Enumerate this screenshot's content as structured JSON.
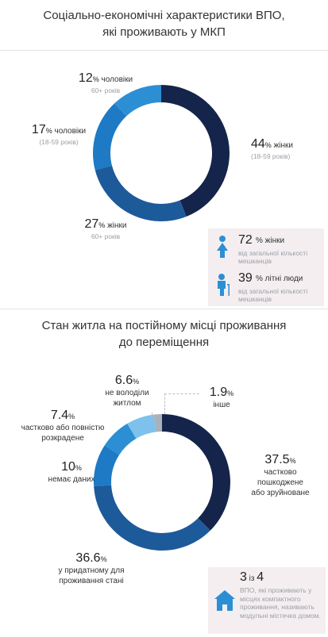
{
  "section1": {
    "title_line1": "Соціально-економічні характеристики ВПО,",
    "title_line2": "які проживають у МКП",
    "labels": {
      "women_18_59": {
        "num": "44",
        "pct": "%",
        "text": " жінки",
        "sub": "(18-59 років)"
      },
      "men_60": {
        "num": "12",
        "pct": "%",
        "text": " чоловіки",
        "sub": "60+ років"
      },
      "men_18_59": {
        "num": "17",
        "pct": "%",
        "text": " чоловіки",
        "sub": "(18-59 років)"
      },
      "women_60": {
        "num": "27",
        "pct": "%",
        "text": " жінки",
        "sub": "60+ років"
      }
    },
    "info": [
      {
        "num": "72",
        "rest": "% жінки",
        "desc": "від загальної кількості мешканців",
        "icon": "woman-icon"
      },
      {
        "num": "39",
        "rest": "% літні люди",
        "desc": "від загальної кількості мешканців",
        "icon": "elderly-person-icon"
      }
    ]
  },
  "section2": {
    "title_line1": "Стан житла на постійному місці проживання",
    "title_line2": "до переміщення",
    "labels": {
      "damaged": {
        "num": "37.5",
        "pct": "%",
        "l1": "частково",
        "l2": "пошкоджене",
        "l3": "або зруйноване"
      },
      "livable": {
        "num": "36.6",
        "pct": "%",
        "l1": "у придатному для",
        "l2": "проживання стані"
      },
      "nodata": {
        "num": "10",
        "pct": "%",
        "l1": "немає даних"
      },
      "looted": {
        "num": "7.4",
        "pct": "%",
        "l1": "частково або повністю",
        "l2": "розкрадене"
      },
      "nohouse": {
        "num": "6.6",
        "pct": "%",
        "l1": "не володіли",
        "l2": "житлом"
      },
      "other": {
        "num": "1.9",
        "pct": "%",
        "l1": "інше"
      }
    },
    "info": {
      "num": "3",
      "mid": " із ",
      "num2": "4",
      "desc": "ВПО, які проживають у місцях компактного проживання, називають модульні містечка домом.",
      "icon": "house-icon"
    }
  },
  "chart_data": [
    {
      "type": "pie",
      "variant": "donut",
      "title": "Соціально-економічні характеристики ВПО, які проживають у МКП",
      "categories": [
        "жінки (18-59 років)",
        "жінки 60+ років",
        "чоловіки (18-59 років)",
        "чоловіки 60+ років"
      ],
      "values": [
        44,
        27,
        17,
        12
      ],
      "colors": [
        "#15244a",
        "#1d5a9a",
        "#1e7ac4",
        "#2c8fd4"
      ]
    },
    {
      "type": "pie",
      "variant": "donut",
      "title": "Стан житла на постійному місці проживання до переміщення",
      "categories": [
        "частково пошкоджене або зруйноване",
        "у придатному для проживання стані",
        "немає даних",
        "частково або повністю розкрадене",
        "не володіли житлом",
        "інше"
      ],
      "values": [
        37.5,
        36.6,
        10,
        7.4,
        6.6,
        1.9
      ],
      "colors": [
        "#15244a",
        "#1d5a9a",
        "#1e7ac4",
        "#2c8fd4",
        "#7ec1ec",
        "#a9b1ba"
      ]
    }
  ]
}
